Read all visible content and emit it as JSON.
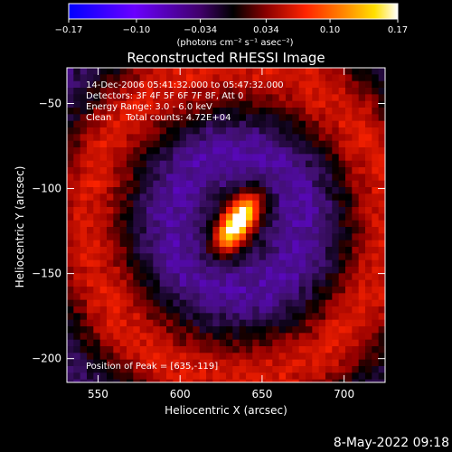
{
  "colorbar": {
    "tick_labels": [
      "−0.17",
      "−0.10",
      "−0.034",
      "0.034",
      "0.10",
      "0.17"
    ],
    "tick_values": [
      -0.17,
      -0.1,
      -0.034,
      0.034,
      0.1,
      0.17
    ],
    "range": [
      -0.17,
      0.17
    ],
    "units_label": "(photons cm⁻² s⁻¹ asec⁻²)",
    "colors": [
      "#0000ff",
      "#7a00ff",
      "#3a0060",
      "#000000",
      "#8a0000",
      "#ff2000",
      "#ff8000",
      "#ffe000",
      "#ffffff"
    ]
  },
  "chart_data": {
    "type": "heatmap",
    "title": "Reconstructed RHESSI Image",
    "xlabel": "Heliocentric X (arcsec)",
    "ylabel": "Heliocentric Y (arcsec)",
    "xlim": [
      531,
      725
    ],
    "ylim": [
      -214,
      -29
    ],
    "x_ticks": [
      550,
      600,
      650,
      700
    ],
    "y_ticks": [
      -50,
      -100,
      -150,
      -200
    ],
    "x_tick_labels": [
      "550",
      "600",
      "650",
      "700"
    ],
    "y_tick_labels": [
      "−50",
      "−100",
      "−150",
      "−200"
    ],
    "info_lines": [
      "14-Dec-2006 05:41:32.000 to 05:47:32.000",
      "Detectors: 3F 4F 5F 6F 7F 8F, Att 0",
      "Energy Range: 3.0 - 6.0 keV",
      "Clean     Total counts: 4.72E+04"
    ],
    "peak_label": "Position of Peak = [635,-119]",
    "peak": [
      635,
      -119
    ],
    "grid": false
  },
  "footer": {
    "timestamp": "8-May-2022 09:18"
  }
}
